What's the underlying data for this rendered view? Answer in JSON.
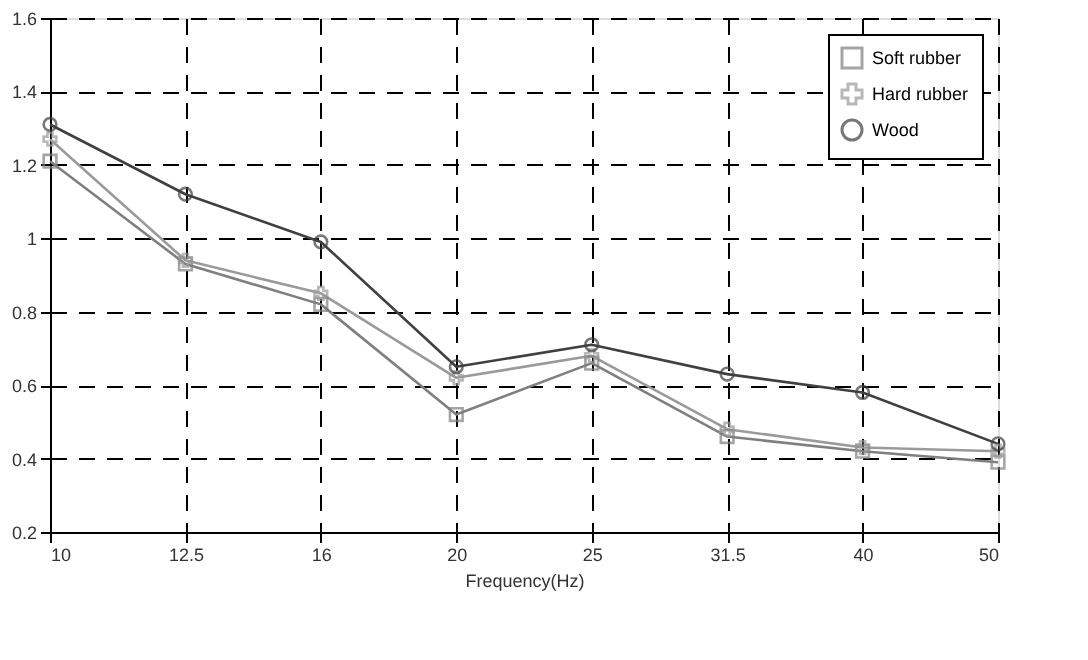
{
  "chart_data": {
    "type": "line",
    "xlabel": "Frequency(Hz)",
    "categories": [
      "10",
      "12.5",
      "16",
      "20",
      "25",
      "31.5",
      "40",
      "50"
    ],
    "series": [
      {
        "name": "Soft rubber",
        "color": "#7f7f7f",
        "marker": "square",
        "values": [
          1.21,
          0.93,
          0.82,
          0.52,
          0.66,
          0.46,
          0.42,
          0.39
        ]
      },
      {
        "name": "Hard rubber",
        "color": "#9a9a9a",
        "marker": "cross",
        "values": [
          1.27,
          0.94,
          0.85,
          0.62,
          0.68,
          0.48,
          0.43,
          0.42
        ]
      },
      {
        "name": "Wood",
        "color": "#404040",
        "marker": "circle",
        "values": [
          1.31,
          1.12,
          0.99,
          0.65,
          0.71,
          0.63,
          0.58,
          0.44
        ]
      }
    ],
    "ylim": [
      0.2,
      1.6
    ],
    "yticks": [
      0.2,
      0.4,
      0.6,
      0.8,
      1,
      1.2,
      1.4,
      1.6
    ],
    "grid": true,
    "legend": "top right",
    "line_style": "solid"
  }
}
